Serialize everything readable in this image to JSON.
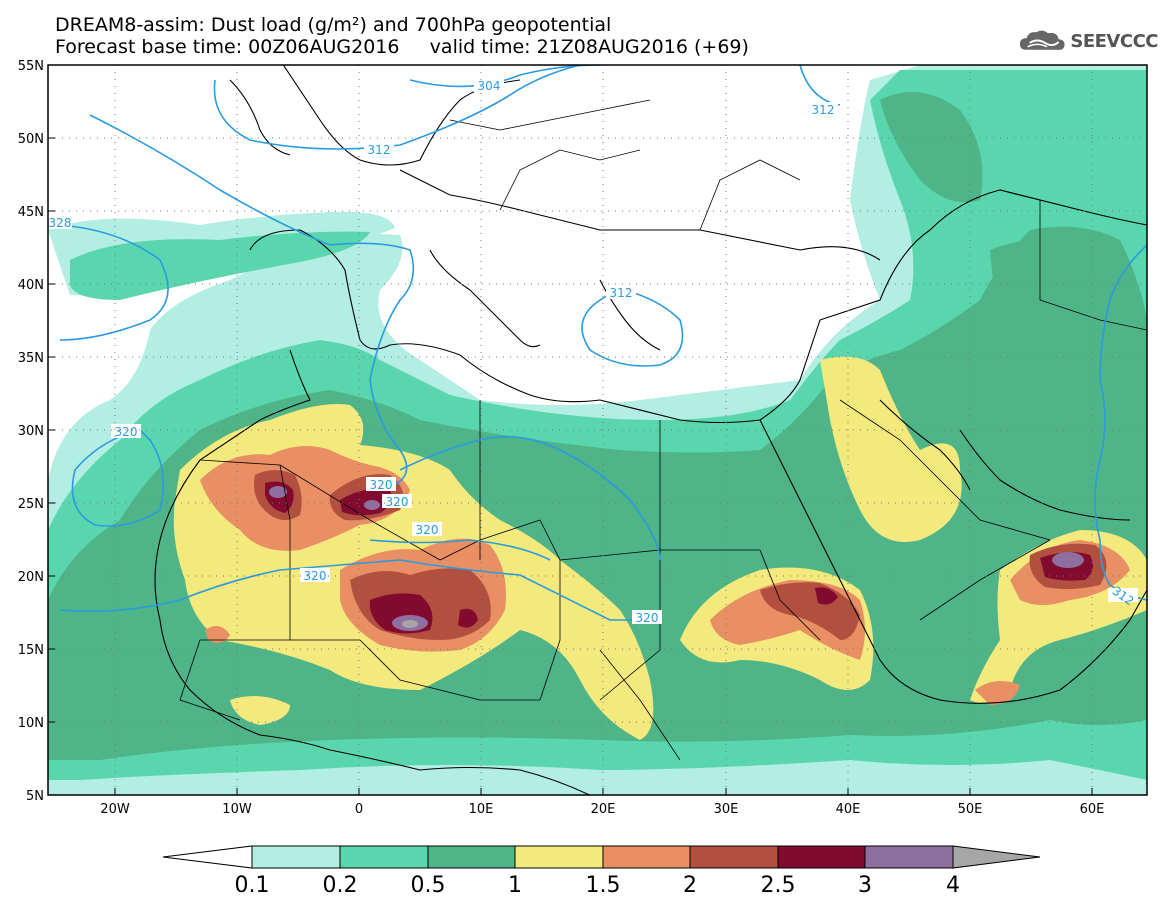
{
  "title_line1": "DREAM8-assim: Dust load (g/m²) and 700hPa geopotential",
  "title_line2": "Forecast base time: 00Z06AUG2016     valid time: 21Z08AUG2016 (+69)",
  "logo_text": "SEEVCCC",
  "map": {
    "lon_range": [
      -25,
      65
    ],
    "lat_range": [
      5,
      55
    ],
    "lat_ticks": [
      "55N",
      "50N",
      "45N",
      "40N",
      "35N",
      "30N",
      "25N",
      "20N",
      "15N",
      "10N",
      "5N"
    ],
    "lon_ticks": [
      "20W",
      "10W",
      "0",
      "10E",
      "20E",
      "30E",
      "40E",
      "50E",
      "60E"
    ]
  },
  "contour_labels": [
    "304",
    "312",
    "312",
    "312",
    "320",
    "320",
    "320",
    "320",
    "320",
    "320",
    "312",
    "328"
  ],
  "colorbar": {
    "labels": [
      "0.1",
      "0.2",
      "0.5",
      "1",
      "1.5",
      "2",
      "2.5",
      "3",
      "4"
    ],
    "colors": [
      "#ffffff",
      "#b3eee2",
      "#5ad6ae",
      "#4fb487",
      "#f3e97c",
      "#e88f63",
      "#b2503f",
      "#820a2e",
      "#8f6f9f",
      "#a6a6a6"
    ]
  }
}
